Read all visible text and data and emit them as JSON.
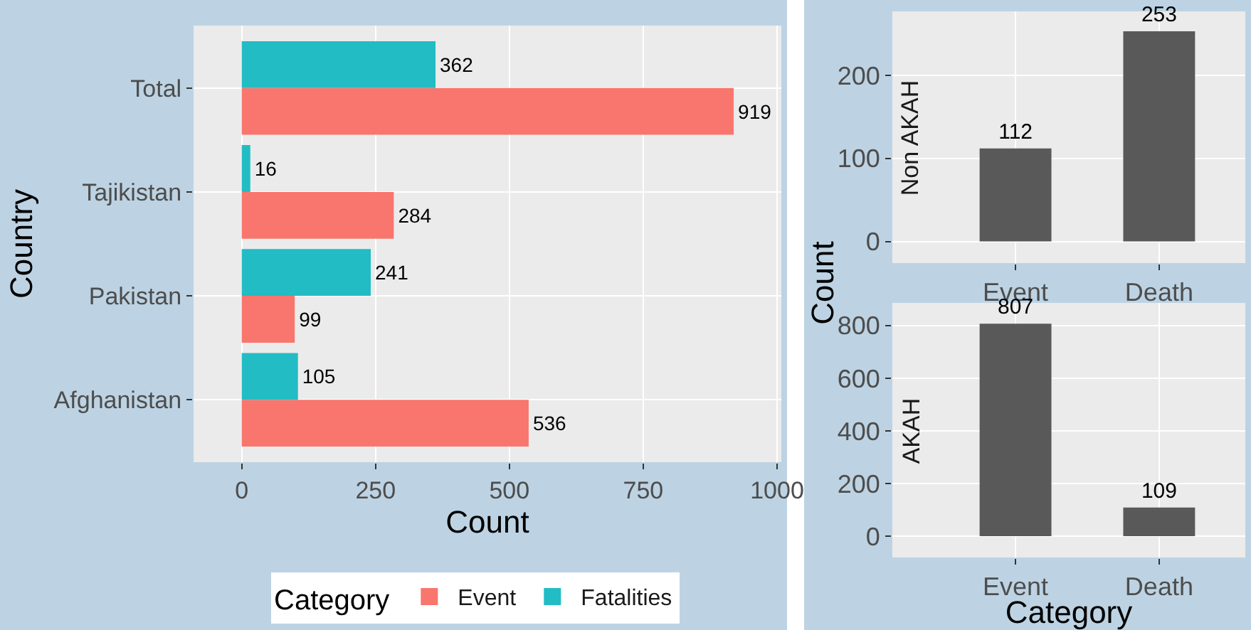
{
  "chart_data": [
    {
      "type": "bar",
      "orientation": "horizontal",
      "categories": [
        "Total",
        "Tajikistan",
        "Pakistan",
        "Afghanistan"
      ],
      "series": [
        {
          "name": "Event",
          "color": "#f8766d",
          "values": [
            919,
            284,
            99,
            536
          ]
        },
        {
          "name": "Fatalities",
          "color": "#22bcc4",
          "values": [
            362,
            16,
            241,
            105
          ]
        }
      ],
      "xlabel": "Count",
      "ylabel": "Country",
      "legend_title": "Category",
      "legend": "bottom",
      "xlim": [
        -90,
        1008
      ],
      "xticks": [
        0,
        250,
        500,
        750,
        1000
      ],
      "grid": true,
      "data_labels": true
    },
    {
      "type": "bar",
      "title": "Non AKAH",
      "categories": [
        "Event",
        "Death"
      ],
      "values": [
        112,
        253
      ],
      "color": "#595959",
      "ylim": [
        -26,
        277
      ],
      "yticks": [
        0,
        100,
        200
      ],
      "grid": true,
      "data_labels": true
    },
    {
      "type": "bar",
      "title": "AKAH",
      "categories": [
        "Event",
        "Death"
      ],
      "values": [
        807,
        109
      ],
      "color": "#595959",
      "xlabel": "Category",
      "ylabel": "Count",
      "ylim": [
        -81,
        886
      ],
      "yticks": [
        0,
        200,
        400,
        600,
        800
      ],
      "grid": true,
      "data_labels": true
    }
  ]
}
